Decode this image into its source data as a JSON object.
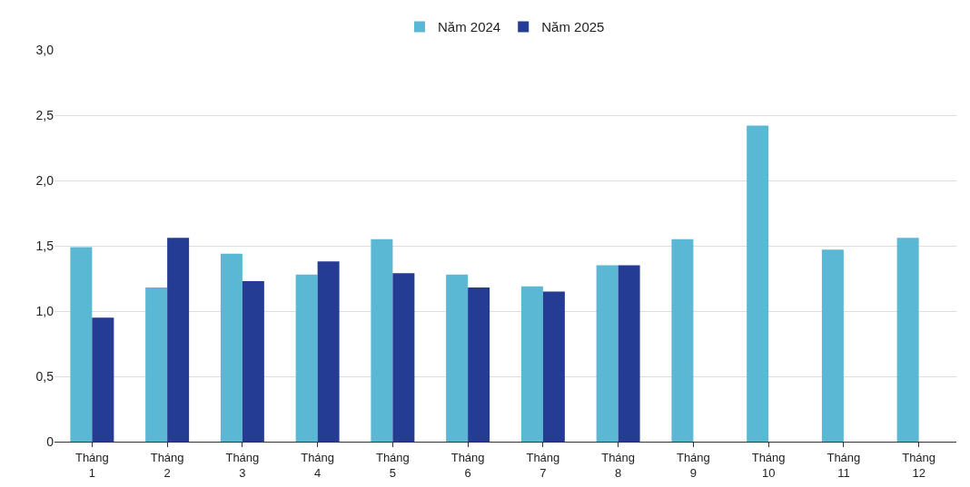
{
  "chart_data": {
    "type": "bar",
    "categories": [
      "Tháng\n1",
      "Tháng\n2",
      "Tháng\n3",
      "Tháng\n4",
      "Tháng\n5",
      "Tháng\n6",
      "Tháng\n7",
      "Tháng\n8",
      "Tháng\n9",
      "Tháng\n10",
      "Tháng\n11",
      "Tháng\n12"
    ],
    "series": [
      {
        "name": "Năm 2024",
        "color": "#5bb8d4",
        "values": [
          1.49,
          1.18,
          1.44,
          1.28,
          1.55,
          1.28,
          1.19,
          1.35,
          1.55,
          2.42,
          1.47,
          1.56
        ]
      },
      {
        "name": "Năm 2025",
        "color": "#243c94",
        "values": [
          0.95,
          1.56,
          1.23,
          1.38,
          1.29,
          1.18,
          1.15,
          1.35,
          null,
          null,
          null,
          null
        ]
      }
    ],
    "ylim": [
      0,
      3
    ],
    "yticks": [
      0,
      {
        "value": 0.5,
        "label": "0,5"
      },
      {
        "value": 1,
        "label": "1,0"
      },
      {
        "value": 1.5,
        "label": "1,5"
      },
      {
        "value": 2,
        "label": "2,0"
      },
      {
        "value": 2.5,
        "label": "2,5"
      },
      {
        "value": 3,
        "label": "3,0"
      }
    ],
    "grid": "y",
    "legend": "top"
  }
}
